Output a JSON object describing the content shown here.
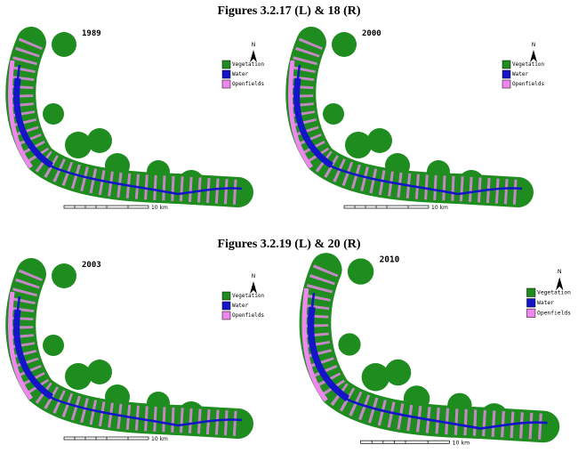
{
  "figures": [
    {
      "caption": "Figures 3.2.17 (L) & 18 (R)",
      "maps": [
        {
          "year": "1989"
        },
        {
          "year": "2000"
        }
      ]
    },
    {
      "caption": "Figures 3.2.19 (L) & 20 (R)",
      "maps": [
        {
          "year": "2003"
        },
        {
          "year": "2010"
        }
      ]
    }
  ],
  "legend": [
    "Vegetation",
    "Water",
    "Openfields"
  ],
  "north": "N",
  "scale": "10 km"
}
